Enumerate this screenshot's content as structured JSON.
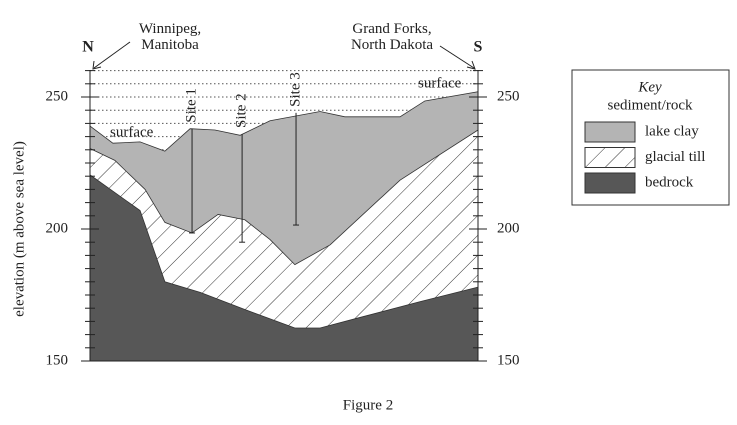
{
  "chart_data": {
    "type": "cross-section",
    "title": "Figure 2",
    "y_label": "elevation (m above sea level)",
    "ylim": [
      150,
      260
    ],
    "yticks": [
      150,
      200,
      250
    ],
    "minor_yticks": [
      155,
      160,
      165,
      170,
      175,
      180,
      185,
      190,
      195,
      205,
      210,
      215,
      220,
      225,
      230,
      235,
      240,
      245,
      255,
      260
    ],
    "grid_yticks": [
      165,
      170,
      175,
      180,
      185,
      190,
      195,
      200,
      205,
      210,
      215,
      220,
      225,
      230,
      235,
      240,
      245,
      250,
      255,
      260
    ],
    "xlim": [
      0,
      100
    ],
    "north": "N",
    "south": "S",
    "north_place": "Winnipeg,\nManitoba",
    "south_place": "Grand Forks,\nNorth Dakota",
    "surface_labels": [
      "surface",
      "surface"
    ],
    "key": {
      "title": "Key",
      "subtitle": "sediment/rock"
    },
    "series": [
      {
        "name": "lake clay",
        "color": "#b4b4b4",
        "x": [
          0,
          5.9,
          12.9,
          19.3,
          25.8,
          32.2,
          38.7,
          46.4,
          59.3,
          65.7,
          79.9,
          86.3,
          100
        ],
        "values": [
          239,
          232.5,
          233,
          229.5,
          238,
          237.5,
          235.5,
          241,
          244.5,
          242.5,
          242.5,
          248.5,
          252
        ]
      },
      {
        "name": "glacial till",
        "color": "hatch",
        "x": [
          0,
          6.4,
          14.2,
          19.3,
          26.3,
          33,
          39.9,
          46.4,
          52.8,
          61.9,
          79.9,
          100
        ],
        "values": [
          230.5,
          226,
          215,
          202.5,
          198.5,
          205.5,
          203.5,
          196,
          186.5,
          194,
          218.5,
          237.5
        ]
      },
      {
        "name": "bedrock",
        "color": "#575757",
        "x": [
          0,
          12.9,
          19.3,
          28.4,
          39.9,
          52.8,
          59.3,
          69.6,
          85.1,
          100
        ],
        "values": [
          220.5,
          207,
          180,
          176,
          169.5,
          162.5,
          162.5,
          166.5,
          172.5,
          178
        ]
      }
    ],
    "sites": [
      {
        "name": "Site 1",
        "x": 26.3,
        "top": 238,
        "bottom": 198.5
      },
      {
        "name": "Site 2",
        "x": 39.2,
        "top": 236,
        "bottom": 195
      },
      {
        "name": "Site 3",
        "x": 53.1,
        "top": 244,
        "bottom": 201.5
      }
    ]
  }
}
